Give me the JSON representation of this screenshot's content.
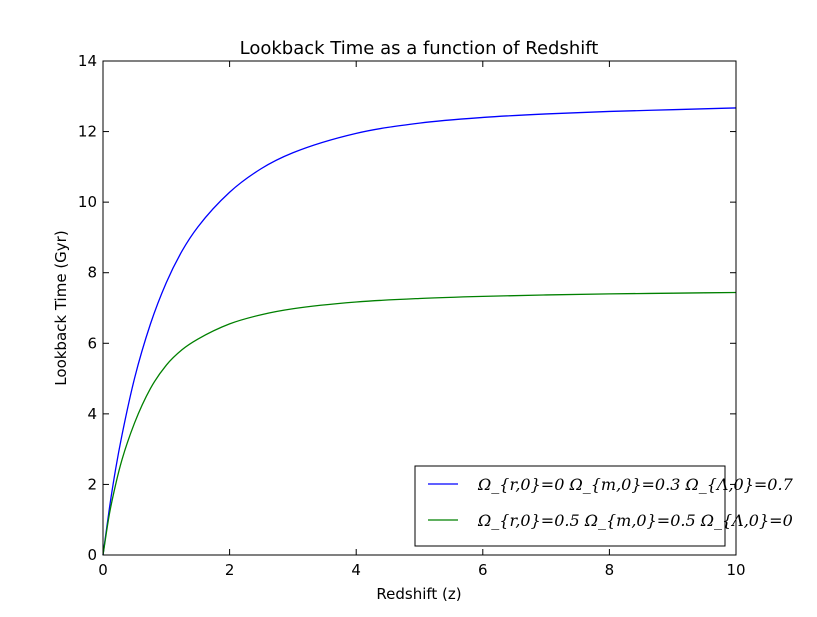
{
  "chart_data": {
    "type": "line",
    "title": "Lookback Time as a function of Redshift",
    "xlabel": "Redshift (z)",
    "ylabel": "Lookback Time (Gyr)",
    "xlim": [
      0,
      10
    ],
    "ylim": [
      0,
      14
    ],
    "xticks": [
      "0",
      "2",
      "4",
      "6",
      "8",
      "10"
    ],
    "yticks": [
      "0",
      "2",
      "4",
      "6",
      "8",
      "10",
      "12",
      "14"
    ],
    "grid": false,
    "legend_position": "lower-right",
    "x": [
      0,
      0.1,
      0.2,
      0.3,
      0.5,
      0.75,
      1,
      1.25,
      1.5,
      2,
      2.5,
      3,
      4,
      5,
      6,
      7,
      8,
      9,
      10
    ],
    "series": [
      {
        "name": "Ω_{r,0}=0 Ω_{m,0}=0.3 Ω_{Λ,0}=0.7",
        "color": "#0000ff",
        "values": [
          0,
          1.31,
          2.44,
          3.4,
          5.02,
          6.55,
          7.72,
          8.62,
          9.3,
          10.28,
          10.95,
          11.4,
          11.95,
          12.24,
          12.4,
          12.5,
          12.57,
          12.62,
          12.67
        ]
      },
      {
        "name": "Ω_{r,0}=0.5 Ω_{m,0}=0.5 Ω_{Λ,0}=0",
        "color": "#008000",
        "values": [
          0,
          1.15,
          2.0,
          2.7,
          3.75,
          4.72,
          5.38,
          5.82,
          6.12,
          6.55,
          6.81,
          6.98,
          7.17,
          7.27,
          7.33,
          7.37,
          7.4,
          7.42,
          7.44
        ]
      }
    ]
  }
}
